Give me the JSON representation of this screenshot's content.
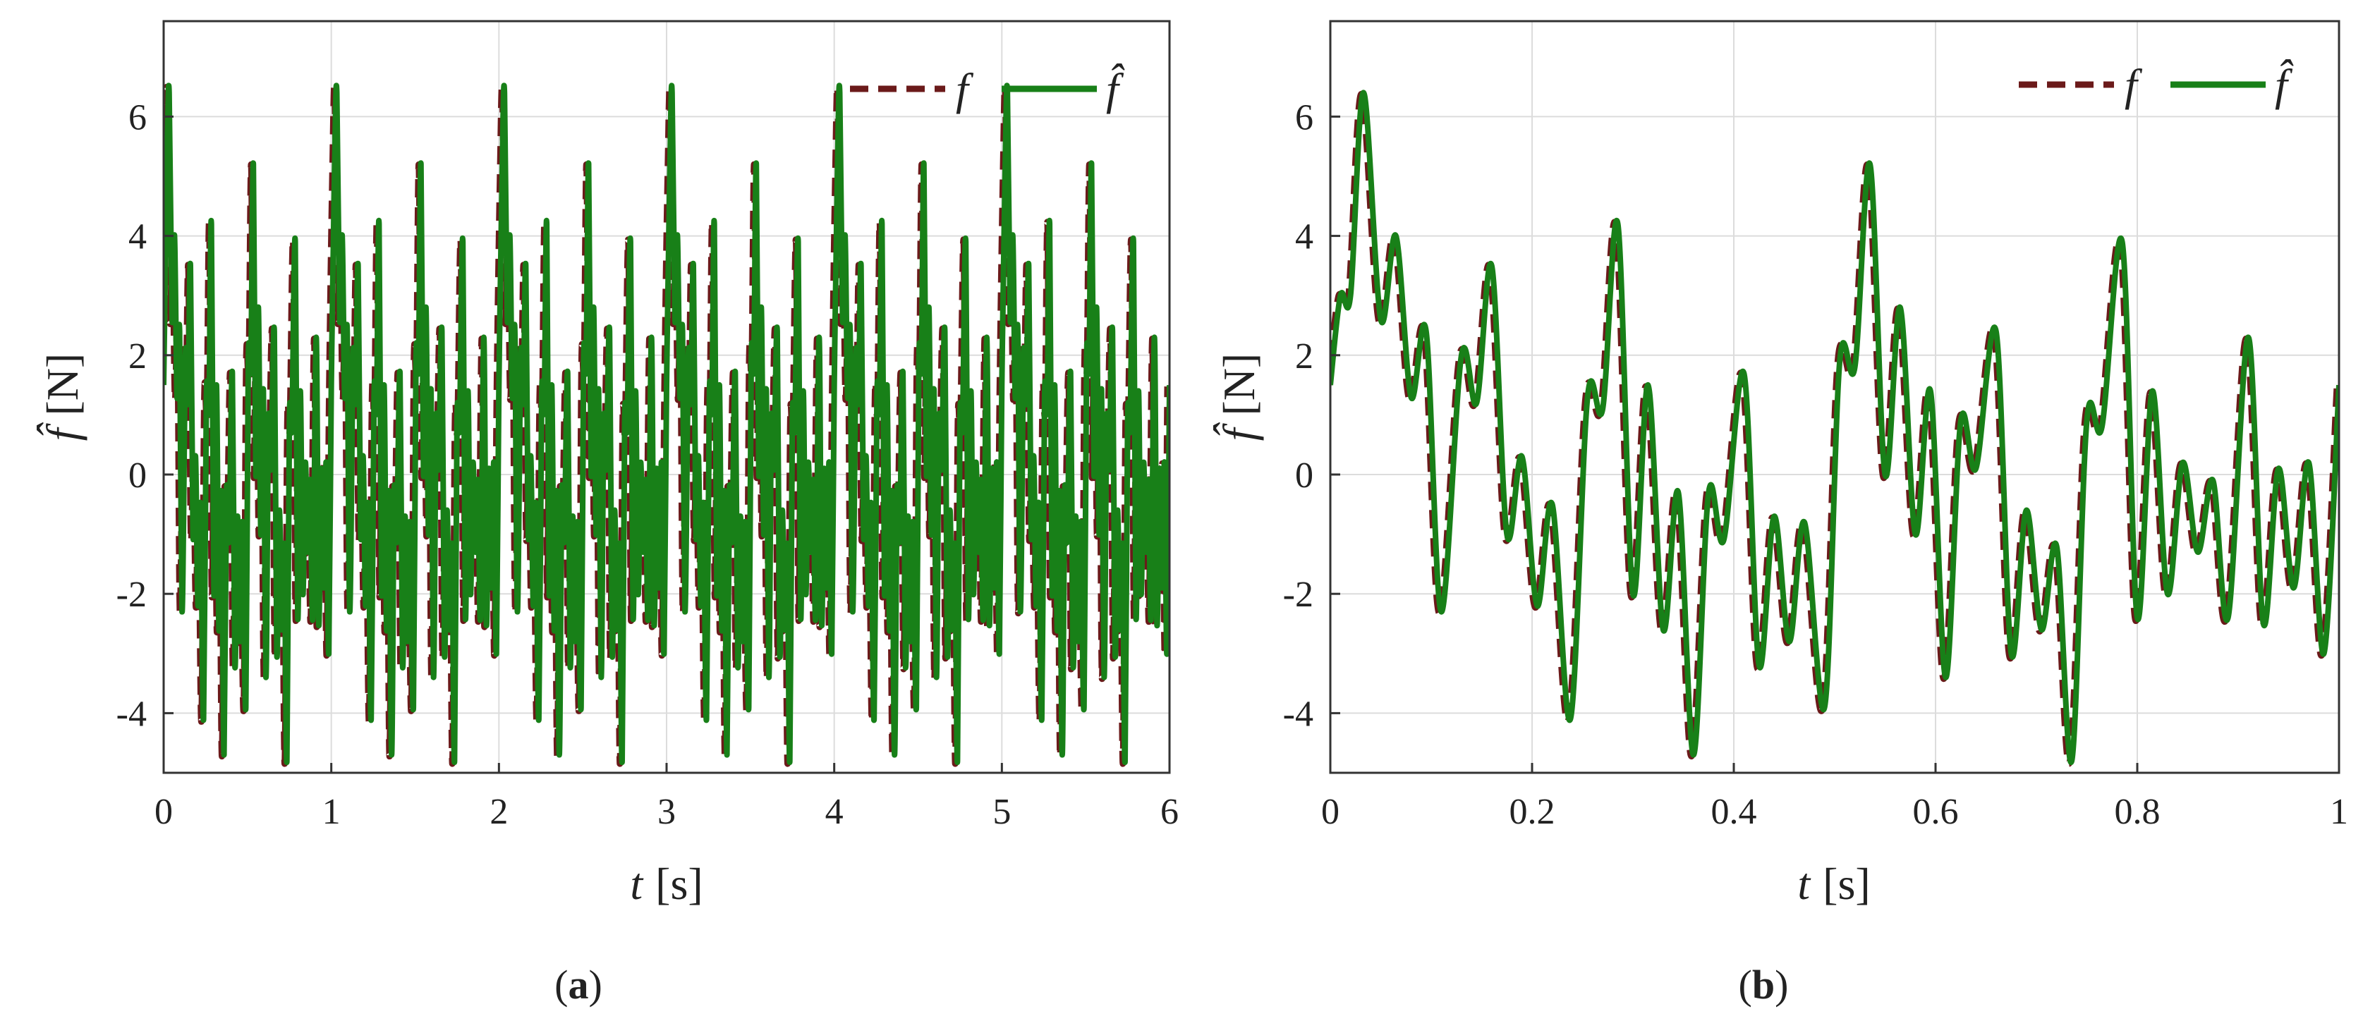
{
  "colors": {
    "reference": "#6b1a1a",
    "estimate": "#188018",
    "grid": "#dcdcdc",
    "axis": "#333333"
  },
  "chart_data": [
    {
      "type": "line",
      "panel": "a",
      "caption": {
        "open": "(",
        "letter": "a",
        "close": ")"
      },
      "xlabel": {
        "symbol": "t",
        "unit": "[s]"
      },
      "ylabel": {
        "symbol": "f̂",
        "unit": "[N]"
      },
      "xlim": [
        0,
        6
      ],
      "ylim": [
        -5,
        7.6
      ],
      "xticks": [
        0,
        1,
        2,
        3,
        4,
        5,
        6
      ],
      "xtick_labels": [
        "0",
        "1",
        "2",
        "3",
        "4",
        "5",
        "6"
      ],
      "yticks": [
        -4,
        -2,
        0,
        2,
        4,
        6
      ],
      "ytick_labels": [
        "-4",
        "-2",
        "0",
        "2",
        "4",
        "6"
      ],
      "grid": true,
      "legend": "top-right",
      "series": [
        {
          "name": "f",
          "style": "dashed",
          "color": "#6b1a1a"
        },
        {
          "name": "f̂",
          "style": "solid",
          "color": "#188018"
        }
      ],
      "period": 1,
      "x": [
        0,
        0.02,
        0.033,
        0.05,
        0.065,
        0.08,
        0.095,
        0.11,
        0.13,
        0.145,
        0.16,
        0.175,
        0.19,
        0.205,
        0.22,
        0.238,
        0.255,
        0.27,
        0.285,
        0.3,
        0.315,
        0.33,
        0.345,
        0.36,
        0.375,
        0.39,
        0.41,
        0.425,
        0.44,
        0.455,
        0.47,
        0.49,
        0.505,
        0.52,
        0.535,
        0.55,
        0.565,
        0.58,
        0.595,
        0.61,
        0.625,
        0.64,
        0.66,
        0.675,
        0.69,
        0.705,
        0.72,
        0.735,
        0.75,
        0.765,
        0.785,
        0.8,
        0.815,
        0.83,
        0.845,
        0.86,
        0.875,
        0.89,
        0.91,
        0.925,
        0.94,
        0.955,
        0.97,
        0.985,
        1.0
      ],
      "y": [
        1.5,
        5.2,
        6.4,
        2.6,
        4.0,
        1.3,
        2.4,
        -2.3,
        2.0,
        1.2,
        3.5,
        -1.0,
        0.3,
        -2.2,
        -0.5,
        -4.1,
        1.3,
        1.1,
        4.2,
        -2.0,
        1.5,
        -2.6,
        -0.3,
        -4.7,
        -0.3,
        -1.1,
        1.7,
        -3.2,
        -0.7,
        -2.8,
        -0.8,
        -3.9,
        1.9,
        1.8,
        5.2,
        0.0,
        2.8,
        -1.0,
        1.4,
        -3.4,
        0.9,
        0.1,
        2.4,
        -3.0,
        -0.6,
        -2.6,
        -1.2,
        -4.8,
        0.9,
        0.8,
        3.9,
        -2.4,
        1.4,
        -2.0,
        0.2,
        -1.3,
        -0.1,
        -2.4,
        2.3,
        -2.5,
        0.1,
        -1.9,
        0.2,
        -3.0,
        1.5
      ]
    },
    {
      "type": "line",
      "panel": "b",
      "caption": {
        "open": "(",
        "letter": "b",
        "close": ")"
      },
      "xlabel": {
        "symbol": "t",
        "unit": "[s]"
      },
      "ylabel": {
        "symbol": "f̂",
        "unit": "[N]"
      },
      "xlim": [
        0,
        1
      ],
      "ylim": [
        -5,
        7.6
      ],
      "xticks": [
        0,
        0.2,
        0.4,
        0.6,
        0.8,
        1
      ],
      "xtick_labels": [
        "0",
        "0.2",
        "0.4",
        "0.6",
        "0.8",
        "1"
      ],
      "yticks": [
        -4,
        -2,
        0,
        2,
        4,
        6
      ],
      "ytick_labels": [
        "-4",
        "-2",
        "0",
        "2",
        "4",
        "6"
      ],
      "grid": true,
      "legend": "top-right",
      "series": [
        {
          "name": "f",
          "style": "dashed",
          "color": "#6b1a1a"
        },
        {
          "name": "f̂",
          "style": "solid",
          "color": "#188018"
        }
      ],
      "x": [
        0,
        0.01,
        0.02,
        0.033,
        0.05,
        0.065,
        0.08,
        0.095,
        0.11,
        0.13,
        0.145,
        0.16,
        0.175,
        0.19,
        0.205,
        0.22,
        0.238,
        0.255,
        0.27,
        0.285,
        0.3,
        0.315,
        0.33,
        0.345,
        0.36,
        0.375,
        0.39,
        0.41,
        0.425,
        0.44,
        0.455,
        0.47,
        0.49,
        0.505,
        0.52,
        0.535,
        0.55,
        0.565,
        0.58,
        0.595,
        0.61,
        0.625,
        0.64,
        0.66,
        0.675,
        0.69,
        0.705,
        0.72,
        0.735,
        0.75,
        0.765,
        0.785,
        0.8,
        0.815,
        0.83,
        0.845,
        0.86,
        0.875,
        0.89,
        0.91,
        0.925,
        0.94,
        0.955,
        0.97,
        0.985,
        1.0
      ],
      "y": [
        1.5,
        3.0,
        3.0,
        6.4,
        2.6,
        4.0,
        1.3,
        2.4,
        -2.3,
        2.0,
        1.2,
        3.5,
        -1.0,
        0.3,
        -2.2,
        -0.5,
        -4.1,
        1.3,
        1.1,
        4.2,
        -2.0,
        1.5,
        -2.6,
        -0.3,
        -4.7,
        -0.3,
        -1.1,
        1.7,
        -3.2,
        -0.7,
        -2.8,
        -0.8,
        -3.9,
        1.9,
        1.8,
        5.2,
        0.0,
        2.8,
        -1.0,
        1.4,
        -3.4,
        0.9,
        0.1,
        2.4,
        -3.0,
        -0.6,
        -2.6,
        -1.2,
        -4.8,
        0.9,
        0.8,
        3.9,
        -2.4,
        1.4,
        -2.0,
        0.2,
        -1.3,
        -0.1,
        -2.4,
        2.3,
        -2.5,
        0.1,
        -1.9,
        0.2,
        -3.0,
        1.5
      ]
    }
  ]
}
